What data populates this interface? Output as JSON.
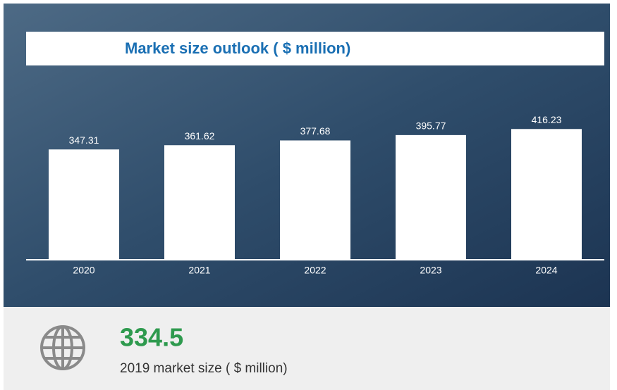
{
  "chart_data": {
    "type": "bar",
    "title": "Market size outlook ( $ million)",
    "categories": [
      "2020",
      "2021",
      "2022",
      "2023",
      "2024"
    ],
    "values": [
      347.31,
      361.62,
      377.68,
      395.77,
      416.23
    ],
    "color": "#ffffff",
    "ylim": [
      -25,
      500
    ]
  },
  "summary": {
    "value": 334.5,
    "label": "2019 market size ( $ million)"
  }
}
